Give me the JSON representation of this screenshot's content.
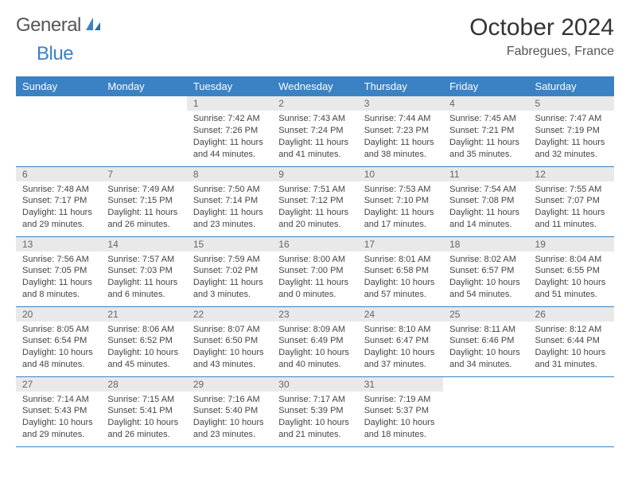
{
  "brand": {
    "part1": "General",
    "part2": "Blue"
  },
  "title": "October 2024",
  "location": "Fabregues, France",
  "colors": {
    "header_bg": "#3b82c4",
    "header_fg": "#ffffff",
    "daynum_bg": "#e9e9e9",
    "daynum_fg": "#666666",
    "body_fg": "#444444",
    "rule": "#3b82c4"
  },
  "typography": {
    "title_fontsize": 30,
    "location_fontsize": 16,
    "daynum_fontsize": 12,
    "body_fontsize": 11,
    "header_fontsize": 13
  },
  "weekdays": [
    "Sunday",
    "Monday",
    "Tuesday",
    "Wednesday",
    "Thursday",
    "Friday",
    "Saturday"
  ],
  "weeks": [
    [
      null,
      null,
      {
        "n": "1",
        "sunrise": "7:42 AM",
        "sunset": "7:26 PM",
        "daylight": "11 hours and 44 minutes."
      },
      {
        "n": "2",
        "sunrise": "7:43 AM",
        "sunset": "7:24 PM",
        "daylight": "11 hours and 41 minutes."
      },
      {
        "n": "3",
        "sunrise": "7:44 AM",
        "sunset": "7:23 PM",
        "daylight": "11 hours and 38 minutes."
      },
      {
        "n": "4",
        "sunrise": "7:45 AM",
        "sunset": "7:21 PM",
        "daylight": "11 hours and 35 minutes."
      },
      {
        "n": "5",
        "sunrise": "7:47 AM",
        "sunset": "7:19 PM",
        "daylight": "11 hours and 32 minutes."
      }
    ],
    [
      {
        "n": "6",
        "sunrise": "7:48 AM",
        "sunset": "7:17 PM",
        "daylight": "11 hours and 29 minutes."
      },
      {
        "n": "7",
        "sunrise": "7:49 AM",
        "sunset": "7:15 PM",
        "daylight": "11 hours and 26 minutes."
      },
      {
        "n": "8",
        "sunrise": "7:50 AM",
        "sunset": "7:14 PM",
        "daylight": "11 hours and 23 minutes."
      },
      {
        "n": "9",
        "sunrise": "7:51 AM",
        "sunset": "7:12 PM",
        "daylight": "11 hours and 20 minutes."
      },
      {
        "n": "10",
        "sunrise": "7:53 AM",
        "sunset": "7:10 PM",
        "daylight": "11 hours and 17 minutes."
      },
      {
        "n": "11",
        "sunrise": "7:54 AM",
        "sunset": "7:08 PM",
        "daylight": "11 hours and 14 minutes."
      },
      {
        "n": "12",
        "sunrise": "7:55 AM",
        "sunset": "7:07 PM",
        "daylight": "11 hours and 11 minutes."
      }
    ],
    [
      {
        "n": "13",
        "sunrise": "7:56 AM",
        "sunset": "7:05 PM",
        "daylight": "11 hours and 8 minutes."
      },
      {
        "n": "14",
        "sunrise": "7:57 AM",
        "sunset": "7:03 PM",
        "daylight": "11 hours and 6 minutes."
      },
      {
        "n": "15",
        "sunrise": "7:59 AM",
        "sunset": "7:02 PM",
        "daylight": "11 hours and 3 minutes."
      },
      {
        "n": "16",
        "sunrise": "8:00 AM",
        "sunset": "7:00 PM",
        "daylight": "11 hours and 0 minutes."
      },
      {
        "n": "17",
        "sunrise": "8:01 AM",
        "sunset": "6:58 PM",
        "daylight": "10 hours and 57 minutes."
      },
      {
        "n": "18",
        "sunrise": "8:02 AM",
        "sunset": "6:57 PM",
        "daylight": "10 hours and 54 minutes."
      },
      {
        "n": "19",
        "sunrise": "8:04 AM",
        "sunset": "6:55 PM",
        "daylight": "10 hours and 51 minutes."
      }
    ],
    [
      {
        "n": "20",
        "sunrise": "8:05 AM",
        "sunset": "6:54 PM",
        "daylight": "10 hours and 48 minutes."
      },
      {
        "n": "21",
        "sunrise": "8:06 AM",
        "sunset": "6:52 PM",
        "daylight": "10 hours and 45 minutes."
      },
      {
        "n": "22",
        "sunrise": "8:07 AM",
        "sunset": "6:50 PM",
        "daylight": "10 hours and 43 minutes."
      },
      {
        "n": "23",
        "sunrise": "8:09 AM",
        "sunset": "6:49 PM",
        "daylight": "10 hours and 40 minutes."
      },
      {
        "n": "24",
        "sunrise": "8:10 AM",
        "sunset": "6:47 PM",
        "daylight": "10 hours and 37 minutes."
      },
      {
        "n": "25",
        "sunrise": "8:11 AM",
        "sunset": "6:46 PM",
        "daylight": "10 hours and 34 minutes."
      },
      {
        "n": "26",
        "sunrise": "8:12 AM",
        "sunset": "6:44 PM",
        "daylight": "10 hours and 31 minutes."
      }
    ],
    [
      {
        "n": "27",
        "sunrise": "7:14 AM",
        "sunset": "5:43 PM",
        "daylight": "10 hours and 29 minutes."
      },
      {
        "n": "28",
        "sunrise": "7:15 AM",
        "sunset": "5:41 PM",
        "daylight": "10 hours and 26 minutes."
      },
      {
        "n": "29",
        "sunrise": "7:16 AM",
        "sunset": "5:40 PM",
        "daylight": "10 hours and 23 minutes."
      },
      {
        "n": "30",
        "sunrise": "7:17 AM",
        "sunset": "5:39 PM",
        "daylight": "10 hours and 21 minutes."
      },
      {
        "n": "31",
        "sunrise": "7:19 AM",
        "sunset": "5:37 PM",
        "daylight": "10 hours and 18 minutes."
      },
      null,
      null
    ]
  ]
}
